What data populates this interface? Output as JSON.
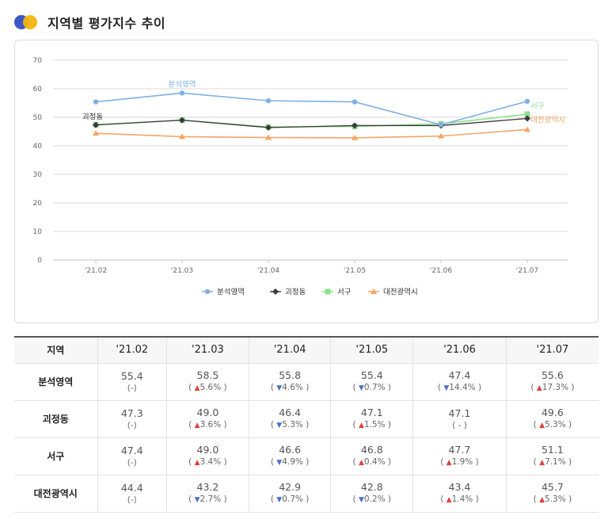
{
  "page": {
    "title": "지역별 평가지수 추이"
  },
  "colors": {
    "series": [
      "#7fb0e3",
      "#3a3a3a",
      "#8fe08a",
      "#f5a565"
    ],
    "grid": "#d9d9d9",
    "axis_text": "#666666",
    "up": "#e0403a",
    "down": "#4a6fc9"
  },
  "chart_data": {
    "type": "line",
    "categories": [
      "'21.02",
      "'21.03",
      "'21.04",
      "'21.05",
      "'21.06",
      "'21.07"
    ],
    "ylim": [
      0,
      70
    ],
    "yticks": [
      0,
      10,
      20,
      30,
      40,
      50,
      60,
      70
    ],
    "grid": true,
    "legend_position": "bottom-center",
    "series": [
      {
        "name": "분석영역",
        "values": [
          55.4,
          58.5,
          55.8,
          55.4,
          47.4,
          55.6
        ],
        "marker": "circle",
        "label": "분석영역",
        "label_at": "'21.03"
      },
      {
        "name": "괴정동",
        "values": [
          47.3,
          49.0,
          46.4,
          47.1,
          47.1,
          49.6
        ],
        "marker": "diamond",
        "label": "괴정동",
        "label_at": "'21.02"
      },
      {
        "name": "서구",
        "values": [
          47.4,
          49.0,
          46.6,
          46.8,
          47.7,
          51.1
        ],
        "marker": "square",
        "label": "서구",
        "label_at": "'21.07"
      },
      {
        "name": "대전광역시",
        "values": [
          44.4,
          43.2,
          42.9,
          42.8,
          43.4,
          45.7
        ],
        "marker": "triangle",
        "label": "대전광역시",
        "label_at": "'21.07"
      }
    ]
  },
  "table": {
    "corner": "지역",
    "columns": [
      "'21.02",
      "'21.03",
      "'21.04",
      "'21.05",
      "'21.06",
      "'21.07"
    ],
    "rows": [
      {
        "region": "분석영역",
        "cells": [
          {
            "value": "55.4",
            "change": "(-)",
            "dir": "none"
          },
          {
            "value": "58.5",
            "change": "5.6%",
            "dir": "up"
          },
          {
            "value": "55.8",
            "change": "4.6%",
            "dir": "down"
          },
          {
            "value": "55.4",
            "change": "0.7%",
            "dir": "down"
          },
          {
            "value": "47.4",
            "change": "14.4%",
            "dir": "down"
          },
          {
            "value": "55.6",
            "change": "17.3%",
            "dir": "up"
          }
        ]
      },
      {
        "region": "괴정동",
        "cells": [
          {
            "value": "47.3",
            "change": "(-)",
            "dir": "none"
          },
          {
            "value": "49.0",
            "change": "3.6%",
            "dir": "up"
          },
          {
            "value": "46.4",
            "change": "5.3%",
            "dir": "down"
          },
          {
            "value": "47.1",
            "change": "1.5%",
            "dir": "up"
          },
          {
            "value": "47.1",
            "change": "(  -  )",
            "dir": "none"
          },
          {
            "value": "49.6",
            "change": "5.3%",
            "dir": "up"
          }
        ]
      },
      {
        "region": "서구",
        "cells": [
          {
            "value": "47.4",
            "change": "(-)",
            "dir": "none"
          },
          {
            "value": "49.0",
            "change": "3.4%",
            "dir": "up"
          },
          {
            "value": "46.6",
            "change": "4.9%",
            "dir": "down"
          },
          {
            "value": "46.8",
            "change": "0.4%",
            "dir": "up"
          },
          {
            "value": "47.7",
            "change": "1.9%",
            "dir": "up"
          },
          {
            "value": "51.1",
            "change": "7.1%",
            "dir": "up"
          }
        ]
      },
      {
        "region": "대전광역시",
        "cells": [
          {
            "value": "44.4",
            "change": "(-)",
            "dir": "none"
          },
          {
            "value": "43.2",
            "change": "2.7%",
            "dir": "down"
          },
          {
            "value": "42.9",
            "change": "0.7%",
            "dir": "down"
          },
          {
            "value": "42.8",
            "change": "0.2%",
            "dir": "down"
          },
          {
            "value": "43.4",
            "change": "1.4%",
            "dir": "up"
          },
          {
            "value": "45.7",
            "change": "5.3%",
            "dir": "up"
          }
        ]
      }
    ]
  }
}
